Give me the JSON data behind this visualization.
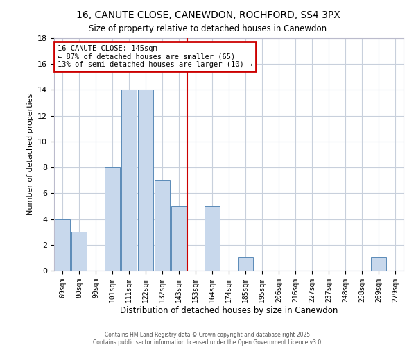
{
  "title": "16, CANUTE CLOSE, CANEWDON, ROCHFORD, SS4 3PX",
  "subtitle": "Size of property relative to detached houses in Canewdon",
  "xlabel": "Distribution of detached houses by size in Canewdon",
  "ylabel": "Number of detached properties",
  "bin_labels": [
    "69sqm",
    "80sqm",
    "90sqm",
    "101sqm",
    "111sqm",
    "122sqm",
    "132sqm",
    "143sqm",
    "153sqm",
    "164sqm",
    "174sqm",
    "185sqm",
    "195sqm",
    "206sqm",
    "216sqm",
    "227sqm",
    "237sqm",
    "248sqm",
    "258sqm",
    "269sqm",
    "279sqm"
  ],
  "values": [
    4,
    3,
    0,
    8,
    14,
    14,
    7,
    5,
    0,
    5,
    0,
    1,
    0,
    0,
    0,
    0,
    0,
    0,
    0,
    1,
    0
  ],
  "bar_color": "#c8d8ec",
  "bar_edge_color": "#5a8ab8",
  "red_line_x": 7,
  "ylim": [
    0,
    18
  ],
  "yticks": [
    0,
    2,
    4,
    6,
    8,
    10,
    12,
    14,
    16,
    18
  ],
  "annotation_title": "16 CANUTE CLOSE: 145sqm",
  "annotation_line1": "← 87% of detached houses are smaller (65)",
  "annotation_line2": "13% of semi-detached houses are larger (10) →",
  "annotation_box_color": "#ffffff",
  "annotation_box_edge": "#cc0000",
  "footer1": "Contains HM Land Registry data © Crown copyright and database right 2025.",
  "footer2": "Contains public sector information licensed under the Open Government Licence v3.0.",
  "background_color": "#ffffff",
  "plot_background": "#ffffff",
  "grid_color": "#c8d0dc"
}
